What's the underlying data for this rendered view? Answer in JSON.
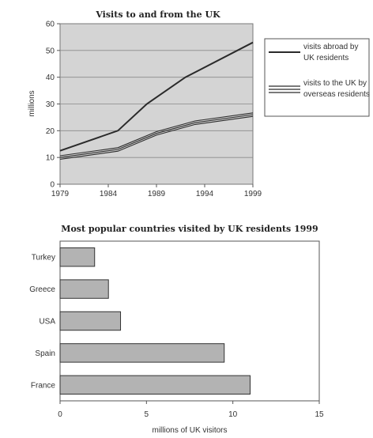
{
  "chart_data": [
    {
      "type": "line",
      "title": "Visits to and from the UK",
      "ylabel": "millions",
      "xlabel": "",
      "x": [
        1979,
        1984,
        1989,
        1994,
        1999
      ],
      "x_points": [
        1979,
        1985,
        1988,
        1992,
        1999
      ],
      "ylim": [
        0,
        60
      ],
      "yticks": [
        0,
        10,
        20,
        30,
        40,
        50,
        60
      ],
      "xticks": [
        1979,
        1984,
        1989,
        1994,
        1999
      ],
      "grid": "horizontal",
      "legend_position": "right",
      "series": [
        {
          "name": "visits abroad by UK residents",
          "x": [
            1979,
            1985,
            1988,
            1992,
            1999
          ],
          "values": [
            12.5,
            20,
            30,
            40,
            53
          ],
          "style": "single"
        },
        {
          "name": "visits to the UK by overseas residents",
          "x": [
            1979,
            1985,
            1989,
            1993,
            1999
          ],
          "values": [
            10,
            13,
            19,
            23,
            26
          ],
          "style": "triple"
        }
      ],
      "legend_lines": [
        [
          "visits abroad by",
          "UK residents"
        ],
        [
          "visits to the UK by",
          "overseas residents"
        ]
      ]
    },
    {
      "type": "bar",
      "orientation": "horizontal",
      "title": "Most popular countries visited by UK residents 1999",
      "xlabel": "millions of UK visitors",
      "ylabel": "",
      "categories": [
        "Turkey",
        "Greece",
        "USA",
        "Spain",
        "France"
      ],
      "values": [
        2,
        2.8,
        3.5,
        9.5,
        11
      ],
      "xlim": [
        0,
        15
      ],
      "xticks": [
        0,
        5,
        10,
        15
      ]
    }
  ],
  "colors": {
    "plot_background": "#d4d4d4",
    "line_dark": "#2a2a2a",
    "bar_fill": "#b3b3b3",
    "bar_stroke": "#333333"
  }
}
